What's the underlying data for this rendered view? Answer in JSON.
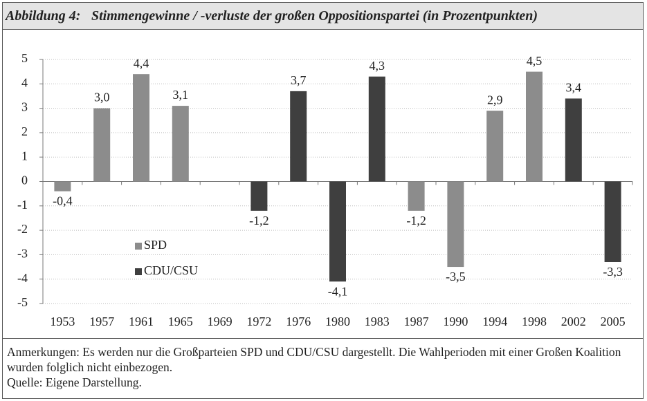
{
  "chart_data": {
    "type": "bar",
    "figure_label": "Abbildung 4:",
    "title": "Stimmengewinne / -verluste der großen Oppositionspartei (in Prozentpunkten)",
    "categories": [
      "1953",
      "1957",
      "1961",
      "1965",
      "1969",
      "1972",
      "1976",
      "1980",
      "1983",
      "1987",
      "1990",
      "1994",
      "1998",
      "2002",
      "2005"
    ],
    "series": [
      {
        "name": "SPD",
        "color": "#8c8c8c",
        "values": [
          -0.4,
          3.0,
          4.4,
          3.1,
          null,
          null,
          null,
          null,
          null,
          -1.2,
          -3.5,
          2.9,
          4.5,
          null,
          null
        ],
        "value_labels": [
          "-0,4",
          "3,0",
          "4,4",
          "3,1",
          null,
          null,
          null,
          null,
          null,
          "-1,2",
          "-3,5",
          "2,9",
          "4,5",
          null,
          null
        ]
      },
      {
        "name": "CDU/CSU",
        "color": "#3f3f3f",
        "values": [
          null,
          null,
          null,
          null,
          null,
          -1.2,
          3.7,
          -4.1,
          4.3,
          null,
          null,
          null,
          null,
          3.4,
          -3.3
        ],
        "value_labels": [
          null,
          null,
          null,
          null,
          null,
          "-1,2",
          "3,7",
          "-4,1",
          "4,3",
          null,
          null,
          null,
          null,
          "3,4",
          "-3,3"
        ]
      }
    ],
    "ylim": [
      -5,
      5
    ],
    "yticks": [
      -5,
      -4,
      -3,
      -2,
      -1,
      0,
      1,
      2,
      3,
      4,
      5
    ],
    "grid": true
  },
  "notes": [
    "Anmerkungen: Es werden nur die Großparteien SPD und CDU/CSU dargestellt. Die Wahlperioden mit einer Großen Koalition wurden folglich nicht einbezogen.",
    "Quelle: Eigene Darstellung."
  ]
}
